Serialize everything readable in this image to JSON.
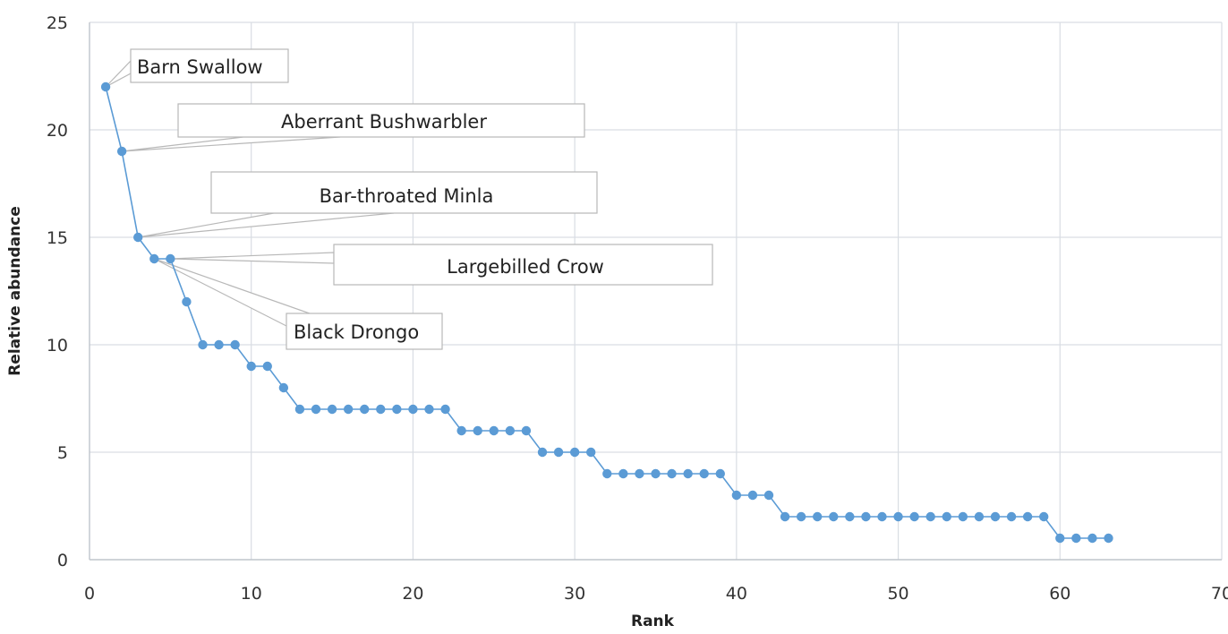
{
  "chart_data": {
    "type": "line",
    "title": "",
    "xlabel": "Rank",
    "ylabel": "Relative abundance",
    "xlim": [
      0,
      70
    ],
    "ylim": [
      0,
      25
    ],
    "xticks": [
      0,
      10,
      20,
      30,
      40,
      50,
      60,
      70
    ],
    "yticks": [
      0,
      5,
      10,
      15,
      20,
      25
    ],
    "grid": true,
    "legend": "none",
    "series_color": "#5b9bd5",
    "gridline_color": "#d9dde3",
    "x": [
      1,
      2,
      3,
      4,
      5,
      6,
      7,
      8,
      9,
      10,
      11,
      12,
      13,
      14,
      15,
      16,
      17,
      18,
      19,
      20,
      21,
      22,
      23,
      24,
      25,
      26,
      27,
      28,
      29,
      30,
      31,
      32,
      33,
      34,
      35,
      36,
      37,
      38,
      39,
      40,
      41,
      42,
      43,
      44,
      45,
      46,
      47,
      48,
      49,
      50,
      51,
      52,
      53,
      54,
      55,
      56,
      57,
      58,
      59,
      60,
      61,
      62,
      63
    ],
    "y": [
      22,
      19,
      15,
      14,
      14,
      12,
      10,
      10,
      10,
      9,
      9,
      8,
      7,
      7,
      7,
      7,
      7,
      7,
      7,
      7,
      7,
      7,
      6,
      6,
      6,
      6,
      6,
      5,
      5,
      5,
      5,
      4,
      4,
      4,
      4,
      4,
      4,
      4,
      4,
      3,
      3,
      3,
      2,
      2,
      2,
      2,
      2,
      2,
      2,
      2,
      2,
      2,
      2,
      2,
      2,
      2,
      2,
      2,
      2,
      1,
      1,
      1,
      1
    ],
    "annotations": [
      {
        "text": "Barn Swallow",
        "rank": 1,
        "value": 22
      },
      {
        "text": "Aberrant Bushwarbler",
        "rank": 2,
        "value": 19
      },
      {
        "text": "Bar-throated Minla",
        "rank": 3,
        "value": 15
      },
      {
        "text": "Largebilled Crow",
        "rank": 5,
        "value": 14
      },
      {
        "text": "Black Drongo",
        "rank": 4,
        "value": 14
      }
    ]
  }
}
